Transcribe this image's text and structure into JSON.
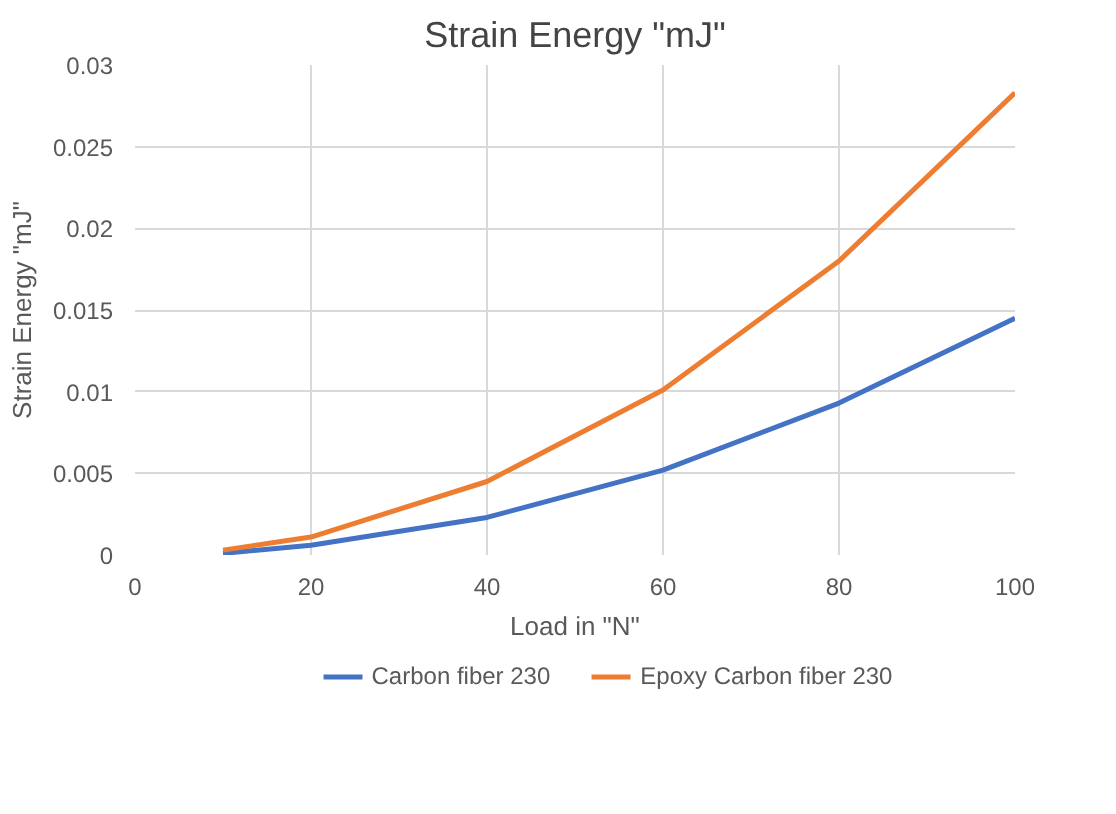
{
  "chart_data": {
    "type": "line",
    "title": "Strain Energy \"mJ\"",
    "xlabel": "Load in \"N\"",
    "ylabel": "Strain Energy \"mJ\"",
    "x": [
      10,
      20,
      40,
      60,
      80,
      100
    ],
    "series": [
      {
        "name": "Carbon fiber 230",
        "color": "#4472c4",
        "values": [
          0.0001,
          0.0006,
          0.0023,
          0.0052,
          0.0093,
          0.0145
        ]
      },
      {
        "name": "Epoxy Carbon fiber 230",
        "color": "#ed7d31",
        "values": [
          0.0003,
          0.0011,
          0.0045,
          0.0101,
          0.018,
          0.0283
        ]
      }
    ],
    "xlim": [
      0,
      100
    ],
    "xticks": [
      0,
      20,
      40,
      60,
      80,
      100
    ],
    "ylim": [
      0,
      0.03
    ],
    "yticks": [
      0,
      0.005,
      0.01,
      0.015,
      0.02,
      0.025,
      0.03
    ],
    "grid": true,
    "legend": "bottom",
    "marker": "none",
    "line_style": "solid"
  }
}
